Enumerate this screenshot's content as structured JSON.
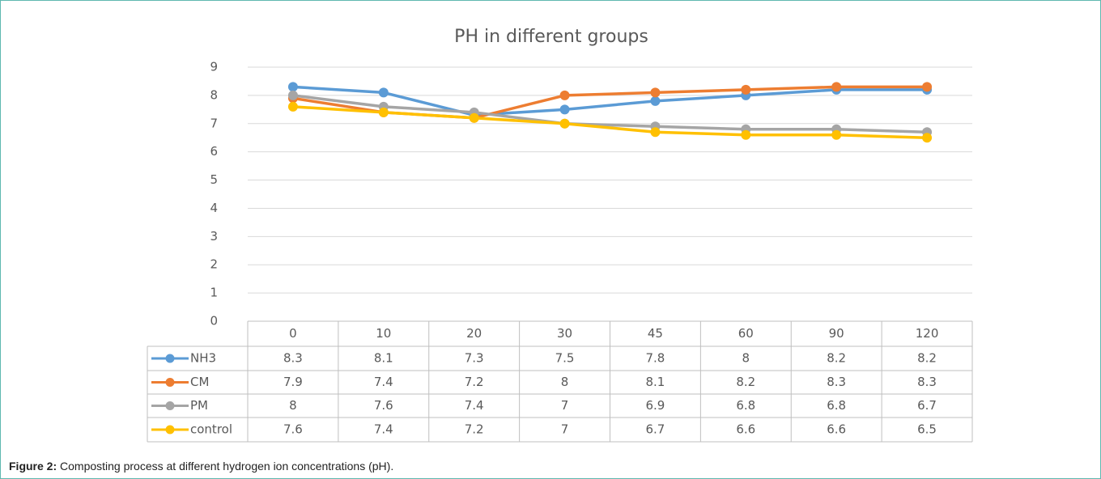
{
  "chart_data": {
    "type": "line",
    "title": "PH in different groups",
    "categories": [
      "0",
      "10",
      "20",
      "30",
      "45",
      "60",
      "90",
      "120"
    ],
    "series": [
      {
        "name": "NH3",
        "color": "#5b9bd5",
        "values": [
          8.3,
          8.1,
          7.3,
          7.5,
          7.8,
          8,
          8.2,
          8.2
        ]
      },
      {
        "name": "CM",
        "color": "#ed7d31",
        "values": [
          7.9,
          7.4,
          7.2,
          8,
          8.1,
          8.2,
          8.3,
          8.3
        ]
      },
      {
        "name": "PM",
        "color": "#a5a5a5",
        "values": [
          8,
          7.6,
          7.4,
          7,
          6.9,
          6.8,
          6.8,
          6.7
        ]
      },
      {
        "name": "control",
        "color": "#ffc000",
        "values": [
          7.6,
          7.4,
          7.2,
          7,
          6.7,
          6.6,
          6.6,
          6.5
        ]
      }
    ],
    "ylim": [
      0,
      9
    ],
    "yticks": [
      0,
      1,
      2,
      3,
      4,
      5,
      6,
      7,
      8,
      9
    ],
    "grid": true
  },
  "caption": {
    "label": "Figure 2:",
    "text": "Composting process at different hydrogen ion concentrations (pH)."
  }
}
